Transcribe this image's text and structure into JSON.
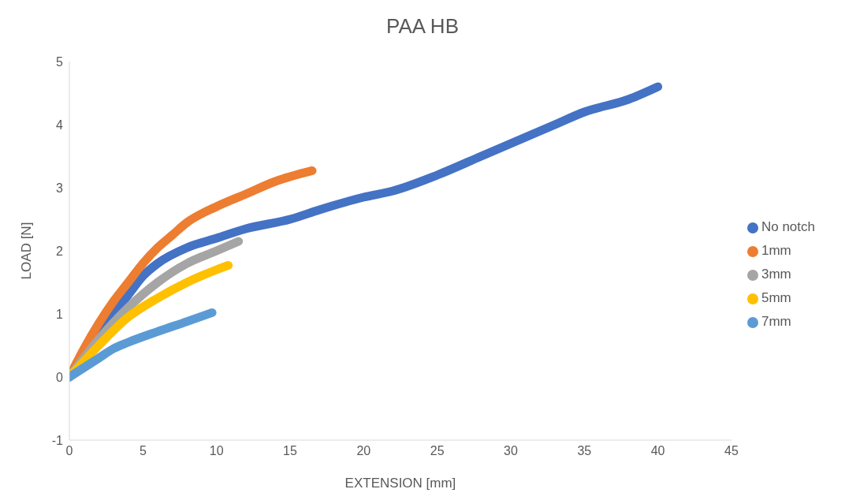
{
  "chart_data": {
    "type": "line",
    "title": "PAA HB",
    "xlabel": "EXTENSION [mm]",
    "ylabel": "LOAD [N]",
    "xlim": [
      0,
      45
    ],
    "xticks": [
      0,
      5,
      10,
      15,
      20,
      25,
      30,
      35,
      40,
      45
    ],
    "ylim": [
      -1,
      5
    ],
    "yticks": [
      -1,
      0,
      1,
      2,
      3,
      4,
      5
    ],
    "grid": false,
    "legend": "right",
    "marker": "none",
    "line_style": "solid",
    "series": [
      {
        "name": "No notch",
        "color": "#4472c4",
        "x": [
          0,
          2,
          4,
          5,
          6,
          8,
          10,
          12,
          15,
          17,
          20,
          22,
          25,
          28,
          30,
          33,
          35,
          38,
          40
        ],
        "values": [
          0,
          0.7,
          1.3,
          1.6,
          1.8,
          2.05,
          2.2,
          2.35,
          2.5,
          2.65,
          2.85,
          2.95,
          3.2,
          3.5,
          3.7,
          4.0,
          4.2,
          4.4,
          4.6
        ]
      },
      {
        "name": "1mm",
        "color": "#ed7d31",
        "x": [
          0,
          1,
          2,
          3,
          4,
          5,
          6,
          7,
          8,
          10,
          12,
          14,
          16.5
        ],
        "values": [
          0,
          0.45,
          0.85,
          1.2,
          1.5,
          1.8,
          2.05,
          2.25,
          2.45,
          2.7,
          2.9,
          3.1,
          3.27
        ]
      },
      {
        "name": "3mm",
        "color": "#a5a5a5",
        "x": [
          0,
          2,
          4,
          6,
          8,
          10,
          11.5
        ],
        "values": [
          0,
          0.6,
          1.1,
          1.5,
          1.8,
          2.0,
          2.15
        ]
      },
      {
        "name": "5mm",
        "color": "#ffc000",
        "x": [
          0,
          2,
          4,
          6,
          8,
          10,
          10.8
        ],
        "values": [
          0,
          0.5,
          0.95,
          1.25,
          1.5,
          1.7,
          1.77
        ]
      },
      {
        "name": "7mm",
        "color": "#5b9bd5",
        "x": [
          0,
          1,
          2,
          3,
          4,
          6,
          8,
          9.7
        ],
        "values": [
          0,
          0.15,
          0.3,
          0.45,
          0.55,
          0.72,
          0.88,
          1.02
        ]
      }
    ]
  }
}
